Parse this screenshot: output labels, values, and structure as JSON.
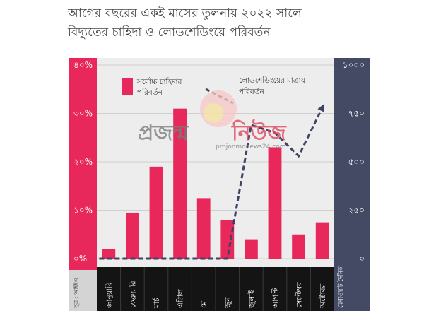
{
  "title_lines": [
    "আগের বছরের একই মাসের তুলনায় ২০২২ সালে",
    "বিদ্যুতের চাহিদা ও লোডশেডিংয়ে পরিবর্তন"
  ],
  "source_label": "সূত্র : আইইএ",
  "right_unit_label": "মেগাওয়াট দৈনিক",
  "watermark": {
    "left": "প্রজন্ম",
    "right": "নিউজ",
    "url": "projonmonews24.com"
  },
  "colors": {
    "bar": "#e8285a",
    "line": "#3f4466",
    "left_axis_bg": "#e8285a",
    "right_axis_bg": "#454a64",
    "plot_bg": "#ededed",
    "xcell_bg": "#141414"
  },
  "chart_data": {
    "type": "bar",
    "categories": [
      "জানুয়ারি",
      "ফেব্রুয়ারি",
      "মার্চ",
      "এপ্রিল",
      "মে",
      "জুন",
      "জুলাই",
      "আগস্ট",
      "সেপ্টেম্বর",
      "অক্টোবর"
    ],
    "series": [
      {
        "name": "সর্বোচ্চ চাহিদার পরিবর্তন",
        "type": "bar",
        "axis": "left",
        "values": [
          2,
          9.5,
          19,
          31,
          12.5,
          8,
          4,
          23,
          5,
          7.5
        ]
      },
      {
        "name": "লোডশেডিংয়ের মাত্রায় পরিবর্তন",
        "type": "line",
        "axis": "right",
        "values": [
          0,
          0,
          0,
          0,
          0,
          0,
          690,
          650,
          530,
          780
        ]
      }
    ],
    "left_axis": {
      "min": 0,
      "max": 40,
      "ticks": [
        "০%",
        "১০%",
        "২০%",
        "৩০%",
        "৪০%"
      ]
    },
    "right_axis": {
      "min": 0,
      "max": 1000,
      "ticks": [
        "০",
        "২৫০",
        "৫০০",
        "৭৫০",
        "১০০০"
      ]
    },
    "legend_placement": "top"
  }
}
